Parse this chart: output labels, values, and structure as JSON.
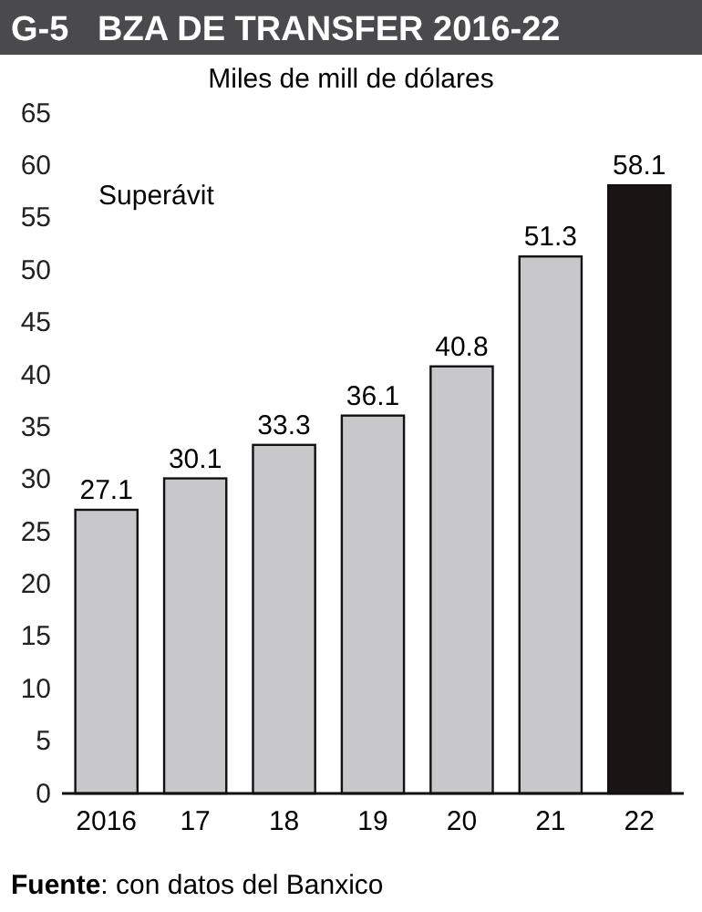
{
  "chart_data": {
    "type": "bar",
    "title": "G-5   BZA DE TRANSFER 2016-22",
    "subtitle": "Miles de mill de dólares",
    "categories": [
      "2016",
      "17",
      "18",
      "19",
      "20",
      "21",
      "22"
    ],
    "values": [
      27.1,
      30.1,
      33.3,
      36.1,
      40.8,
      51.3,
      58.1
    ],
    "colors": [
      "#c8c8ca",
      "#c8c8ca",
      "#c8c8ca",
      "#c8c8ca",
      "#c8c8ca",
      "#c8c8ca",
      "#1a1414"
    ],
    "ylim": [
      0,
      65
    ],
    "yticks": [
      0,
      5,
      10,
      15,
      20,
      25,
      30,
      35,
      40,
      45,
      50,
      55,
      60,
      65
    ],
    "data_labels": true,
    "grid": false,
    "annotations": [
      "Superávit",
      "Fuente: con datos del Banxico"
    ]
  }
}
